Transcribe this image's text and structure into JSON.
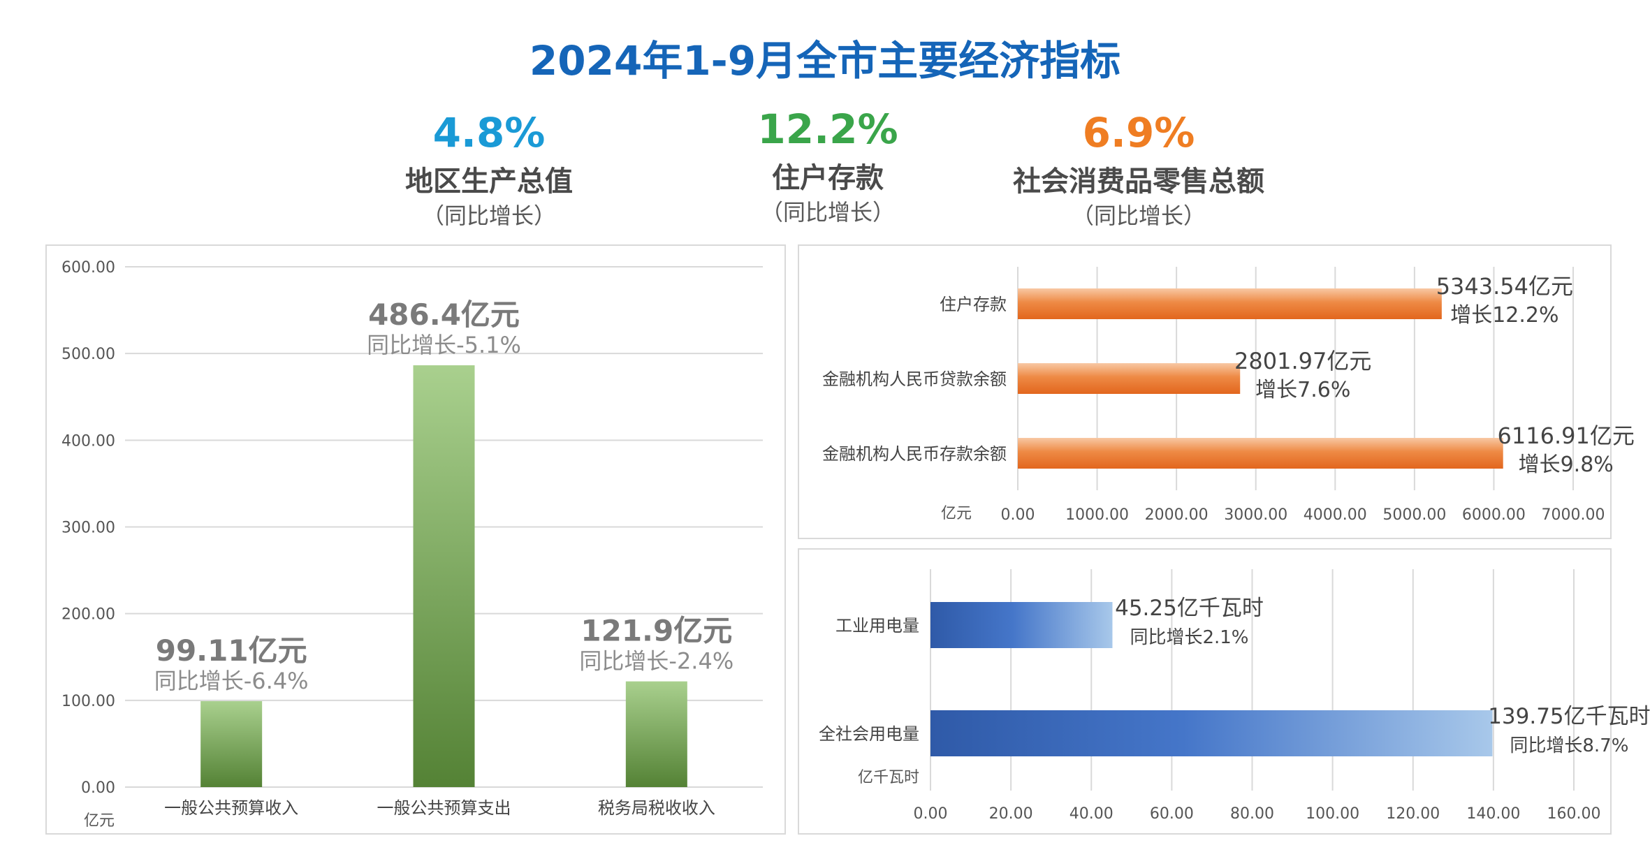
{
  "title": "2024年1-9月全市主要经济指标",
  "kpis": [
    {
      "value": "4.8%",
      "label": "地区生产总值",
      "sub": "（同比增长）",
      "color": "#1a9ad6"
    },
    {
      "value": "12.2%",
      "label": "住户存款",
      "sub": "（同比增长）",
      "color": "#3aa54a"
    },
    {
      "value": "6.9%",
      "label": "社会消费品零售总额",
      "sub": "（同比增长）",
      "color": "#ef7d22"
    }
  ],
  "chart_data": [
    {
      "type": "bar",
      "unit_label": "亿元",
      "categories": [
        "一般公共预算收入",
        "一般公共预算支出",
        "税务局税收收入"
      ],
      "values": [
        99.11,
        486.4,
        121.9
      ],
      "value_labels": [
        "99.11亿元",
        "486.4亿元",
        "121.9亿元"
      ],
      "growth_labels": [
        "同比增长-6.4%",
        "同比增长-5.1%",
        "同比增长-2.4%"
      ],
      "ylim": [
        0,
        600
      ],
      "yticks": [
        "0.00",
        "100.00",
        "200.00",
        "300.00",
        "400.00",
        "500.00",
        "600.00"
      ],
      "grid": true,
      "color": "#70ad47"
    },
    {
      "type": "bar",
      "orientation": "horizontal",
      "unit_label": "亿元",
      "categories": [
        "住户存款",
        "金融机构人民币贷款余额",
        "金融机构人民币存款余额"
      ],
      "values": [
        5343.54,
        2801.97,
        6116.91
      ],
      "value_labels": [
        "5343.54亿元",
        "2801.97亿元",
        "6116.91亿元"
      ],
      "growth_labels": [
        "增长12.2%",
        "增长7.6%",
        "增长9.8%"
      ],
      "xlim": [
        0,
        7000
      ],
      "xticks": [
        "0.00",
        "1000.00",
        "2000.00",
        "3000.00",
        "4000.00",
        "5000.00",
        "6000.00",
        "7000.00"
      ],
      "grid": true,
      "color": "#ed7d31"
    },
    {
      "type": "bar",
      "orientation": "horizontal",
      "unit_label": "亿千瓦时",
      "categories": [
        "工业用电量",
        "全社会用电量"
      ],
      "values": [
        45.25,
        139.75
      ],
      "value_labels": [
        "45.25亿千瓦时",
        "139.75亿千瓦时"
      ],
      "growth_labels": [
        "同比增长2.1%",
        "同比增长8.7%"
      ],
      "xlim": [
        0,
        160
      ],
      "xticks": [
        "0.00",
        "20.00",
        "40.00",
        "60.00",
        "80.00",
        "100.00",
        "120.00",
        "140.00",
        "160.00"
      ],
      "grid": true,
      "color": "#4472c4"
    }
  ]
}
